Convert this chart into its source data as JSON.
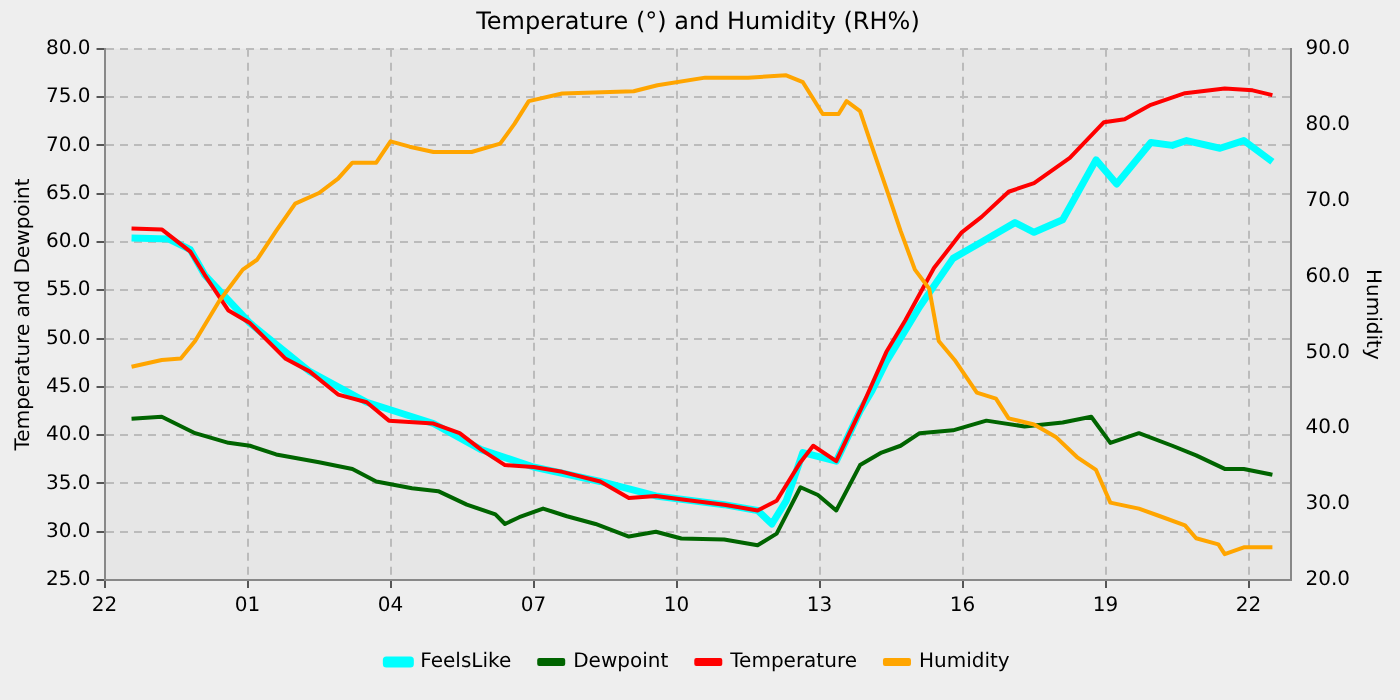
{
  "chart_data": {
    "type": "line",
    "title": "Temperature (°) and Humidity (RH%)",
    "ylabel": "Temperature and Dewpoint",
    "y2label": "Humidity",
    "xlim": [
      "--01-01T22:00",
      "--01-02T22:54"
    ],
    "xticks": [
      {
        "value": "--01-01T22:00",
        "label": "22"
      },
      {
        "value": "--01-02T01:00",
        "label": "01"
      },
      {
        "value": "--01-02T04:00",
        "label": "04"
      },
      {
        "value": "--01-02T07:00",
        "label": "07"
      },
      {
        "value": "--01-02T10:00",
        "label": "10"
      },
      {
        "value": "--01-02T13:00",
        "label": "13"
      },
      {
        "value": "--01-02T16:00",
        "label": "16"
      },
      {
        "value": "--01-02T19:00",
        "label": "19"
      },
      {
        "value": "--01-02T22:00",
        "label": "22"
      }
    ],
    "ylim": [
      25,
      80
    ],
    "yticks": [
      {
        "value": 25,
        "label": "25.0"
      },
      {
        "value": 30,
        "label": "30.0"
      },
      {
        "value": 35,
        "label": "35.0"
      },
      {
        "value": 40,
        "label": "40.0"
      },
      {
        "value": 45,
        "label": "45.0"
      },
      {
        "value": 50,
        "label": "50.0"
      },
      {
        "value": 55,
        "label": "55.0"
      },
      {
        "value": 60,
        "label": "60.0"
      },
      {
        "value": 65,
        "label": "65.0"
      },
      {
        "value": 70,
        "label": "70.0"
      },
      {
        "value": 75,
        "label": "75.0"
      },
      {
        "value": 80,
        "label": "80.0"
      }
    ],
    "y2lim": [
      20,
      90
    ],
    "y2ticks": [
      {
        "value": 20,
        "label": "20.0"
      },
      {
        "value": 30,
        "label": "30.0"
      },
      {
        "value": 40,
        "label": "40.0"
      },
      {
        "value": 50,
        "label": "50.0"
      },
      {
        "value": 60,
        "label": "60.0"
      },
      {
        "value": 70,
        "label": "70.0"
      },
      {
        "value": 80,
        "label": "80.0"
      },
      {
        "value": 90,
        "label": "90.0"
      }
    ],
    "grid": true,
    "legend": "bottom",
    "marker": "none",
    "line_style": "solid",
    "series": [
      {
        "name": "FeelsLike",
        "color": "#00ffff",
        "x": [
          "--01-01T22:34",
          "--01-01T23:21",
          "--01-01T23:48",
          "--01-02T00:06",
          "--01-02T01:03",
          "--01-02T02:18",
          "--01-02T03:30",
          "--01-02T04:54",
          "--01-02T05:54",
          "--01-02T07:00",
          "--01-02T08:24",
          "--01-02T09:34",
          "--01-02T11:00",
          "--01-02T11:42",
          "--01-02T12:00",
          "--01-02T12:18",
          "--01-02T12:39",
          "--01-02T13:21",
          "--01-02T13:51",
          "--01-02T14:06",
          "--01-02T14:24",
          "--01-02T15:06",
          "--01-02T15:48",
          "--01-02T16:24",
          "--01-02T17:06",
          "--01-02T17:30",
          "--01-02T18:06",
          "--01-02T18:48",
          "--01-02T19:14",
          "--01-02T19:57",
          "--01-02T20:24",
          "--01-02T20:42",
          "--01-02T21:24",
          "--01-02T21:54",
          "--01-02T22:30"
        ],
        "values": [
          60.4,
          60.3,
          59.2,
          56.6,
          51.6,
          46.6,
          43.4,
          41.2,
          38.5,
          36.7,
          35.2,
          33.7,
          32.8,
          32.2,
          30.8,
          33.2,
          38.2,
          37.3,
          42.5,
          44.6,
          47.6,
          53.3,
          58.3,
          60.0,
          62.0,
          61.0,
          62.3,
          68.5,
          66.0,
          70.3,
          70.0,
          70.5,
          69.7,
          70.5,
          68.3
        ]
      },
      {
        "name": "Dewpoint",
        "color": "#006400",
        "x": [
          "--01-01T22:34",
          "--01-01T23:12",
          "--01-01T23:54",
          "--01-02T00:36",
          "--01-02T01:03",
          "--01-02T01:36",
          "--01-02T02:30",
          "--01-02T03:12",
          "--01-02T03:42",
          "--01-02T04:27",
          "--01-02T05:00",
          "--01-02T05:36",
          "--01-02T06:12",
          "--01-02T06:24",
          "--01-02T06:42",
          "--01-02T07:12",
          "--01-02T07:42",
          "--01-02T08:18",
          "--01-02T09:00",
          "--01-02T09:34",
          "--01-02T10:06",
          "--01-02T11:00",
          "--01-02T11:42",
          "--01-02T12:06",
          "--01-02T12:36",
          "--01-02T12:58",
          "--01-02T13:21",
          "--01-02T13:51",
          "--01-02T14:18",
          "--01-02T14:42",
          "--01-02T15:06",
          "--01-02T15:48",
          "--01-02T16:30",
          "--01-02T17:18",
          "--01-02T18:06",
          "--01-02T18:42",
          "--01-02T19:06",
          "--01-02T19:42",
          "--01-02T20:24",
          "--01-02T20:54",
          "--01-02T21:30",
          "--01-02T21:54",
          "--01-02T22:30"
        ],
        "values": [
          41.7,
          41.9,
          40.2,
          39.2,
          38.9,
          38.0,
          37.2,
          36.5,
          35.2,
          34.5,
          34.2,
          32.8,
          31.8,
          30.8,
          31.5,
          32.4,
          31.6,
          30.8,
          29.5,
          30.0,
          29.3,
          29.2,
          28.6,
          29.8,
          34.6,
          33.8,
          32.2,
          36.9,
          38.2,
          38.9,
          40.2,
          40.5,
          41.5,
          40.9,
          41.3,
          41.9,
          39.2,
          40.2,
          38.9,
          37.9,
          36.5,
          36.5,
          35.9
        ]
      },
      {
        "name": "Temperature",
        "color": "#ff0000",
        "x": [
          "--01-01T22:34",
          "--01-01T23:12",
          "--01-01T23:48",
          "--01-02T00:06",
          "--01-02T00:36",
          "--01-02T01:03",
          "--01-02T01:48",
          "--01-02T02:18",
          "--01-02T02:54",
          "--01-02T03:30",
          "--01-02T03:58",
          "--01-02T04:54",
          "--01-02T05:27",
          "--01-02T05:54",
          "--01-02T06:24",
          "--01-02T07:00",
          "--01-02T07:36",
          "--01-02T08:24",
          "--01-02T09:00",
          "--01-02T09:34",
          "--01-02T10:10",
          "--01-02T11:00",
          "--01-02T11:42",
          "--01-02T12:06",
          "--01-02T12:36",
          "--01-02T12:52",
          "--01-02T13:21",
          "--01-02T13:51",
          "--01-02T14:24",
          "--01-02T14:48",
          "--01-02T15:24",
          "--01-02T15:59",
          "--01-02T16:24",
          "--01-02T16:58",
          "--01-02T17:30",
          "--01-02T18:15",
          "--01-02T18:58",
          "--01-02T19:24",
          "--01-02T19:57",
          "--01-02T20:40",
          "--01-02T21:30",
          "--01-02T22:05",
          "--01-02T22:30"
        ],
        "values": [
          61.4,
          61.3,
          59.0,
          56.6,
          52.9,
          51.6,
          47.9,
          46.6,
          44.2,
          43.4,
          41.5,
          41.2,
          40.2,
          38.5,
          36.9,
          36.7,
          36.2,
          35.2,
          33.5,
          33.7,
          33.3,
          32.8,
          32.2,
          33.2,
          37.2,
          38.9,
          37.3,
          42.5,
          48.6,
          51.9,
          57.3,
          61.0,
          62.6,
          65.2,
          66.1,
          68.7,
          72.4,
          72.7,
          74.2,
          75.4,
          75.9,
          75.7,
          75.2
        ]
      },
      {
        "name": "Humidity",
        "color": "#ffa500",
        "axis": "y2",
        "x": [
          "--01-01T22:34",
          "--01-01T23:12",
          "--01-01T23:36",
          "--01-01T23:54",
          "--01-02T00:24",
          "--01-02T00:54",
          "--01-02T01:12",
          "--01-02T01:36",
          "--01-02T02:00",
          "--01-02T02:30",
          "--01-02T02:54",
          "--01-02T03:12",
          "--01-02T03:42",
          "--01-02T04:00",
          "--01-02T04:24",
          "--01-02T04:54",
          "--01-02T05:42",
          "--01-02T06:18",
          "--01-02T06:36",
          "--01-02T06:54",
          "--01-02T07:36",
          "--01-02T09:06",
          "--01-02T09:36",
          "--01-02T10:36",
          "--01-02T11:30",
          "--01-02T12:18",
          "--01-02T12:39",
          "--01-02T13:04",
          "--01-02T13:24",
          "--01-02T13:34",
          "--01-02T13:51",
          "--01-02T14:06",
          "--01-02T14:24",
          "--01-02T14:42",
          "--01-02T15:00",
          "--01-02T15:18",
          "--01-02T15:30",
          "--01-02T15:50",
          "--01-02T16:18",
          "--01-02T16:42",
          "--01-02T16:58",
          "--01-02T17:30",
          "--01-02T17:58",
          "--01-02T18:24",
          "--01-02T18:48",
          "--01-02T19:06",
          "--01-02T19:42",
          "--01-02T20:06",
          "--01-02T20:40",
          "--01-02T20:54",
          "--01-02T21:22",
          "--01-02T21:30",
          "--01-02T21:54",
          "--01-02T22:30"
        ],
        "values": [
          48.1,
          49.0,
          49.2,
          51.5,
          56.7,
          60.9,
          62.2,
          66.0,
          69.6,
          71.0,
          72.9,
          75.0,
          75.0,
          77.8,
          77.1,
          76.4,
          76.4,
          77.5,
          80.1,
          83.1,
          84.1,
          84.4,
          85.2,
          86.2,
          86.2,
          86.5,
          85.6,
          81.4,
          81.4,
          83.1,
          81.8,
          77.1,
          71.6,
          66.0,
          60.9,
          58.4,
          51.5,
          49.0,
          44.7,
          43.9,
          41.3,
          40.5,
          38.8,
          36.2,
          34.5,
          30.2,
          29.4,
          28.5,
          27.2,
          25.5,
          24.7,
          23.4,
          24.3,
          24.3
        ]
      }
    ]
  }
}
